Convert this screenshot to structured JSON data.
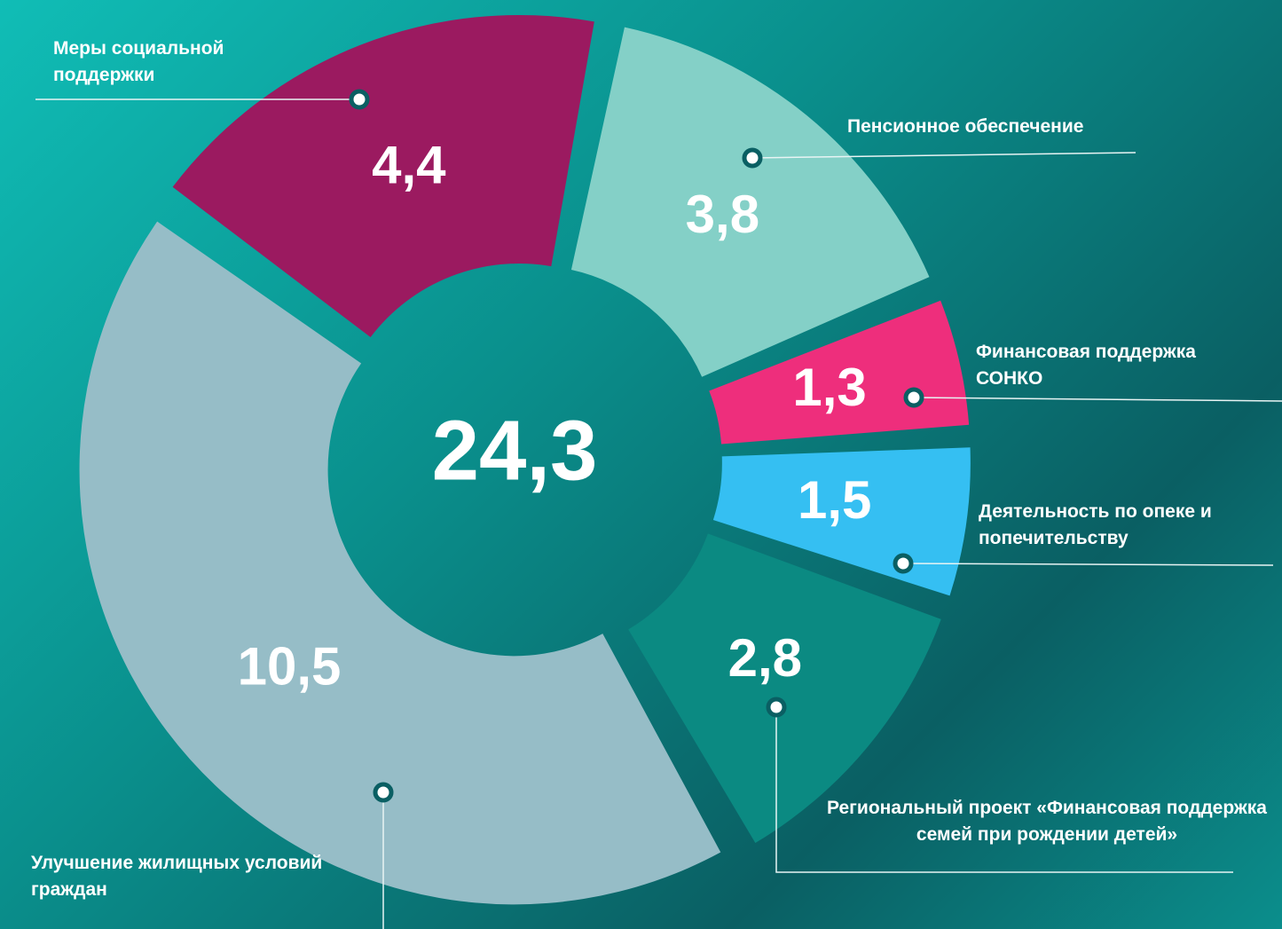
{
  "chart_data": {
    "type": "donut",
    "categories": [
      "Меры социальной поддержки",
      "Пенсионное обеспечение",
      "Финансовая поддержка СОНКО",
      "Деятельность по опеке и попечительству",
      "Региональный проект «Финансовая поддержка семей при рождении детей»",
      "Улучшение жилищных условий граждан"
    ],
    "values": [
      4.4,
      3.8,
      1.3,
      1.5,
      2.8,
      10.5
    ],
    "value_labels": [
      "4,4",
      "3,8",
      "1,3",
      "1,5",
      "2,8",
      "10,5"
    ],
    "colors": [
      "#9b1a60",
      "#84d0c7",
      "#ee2e7c",
      "#35bff2",
      "#0b8a82",
      "#96bdc7"
    ],
    "center_text": "24,3"
  }
}
